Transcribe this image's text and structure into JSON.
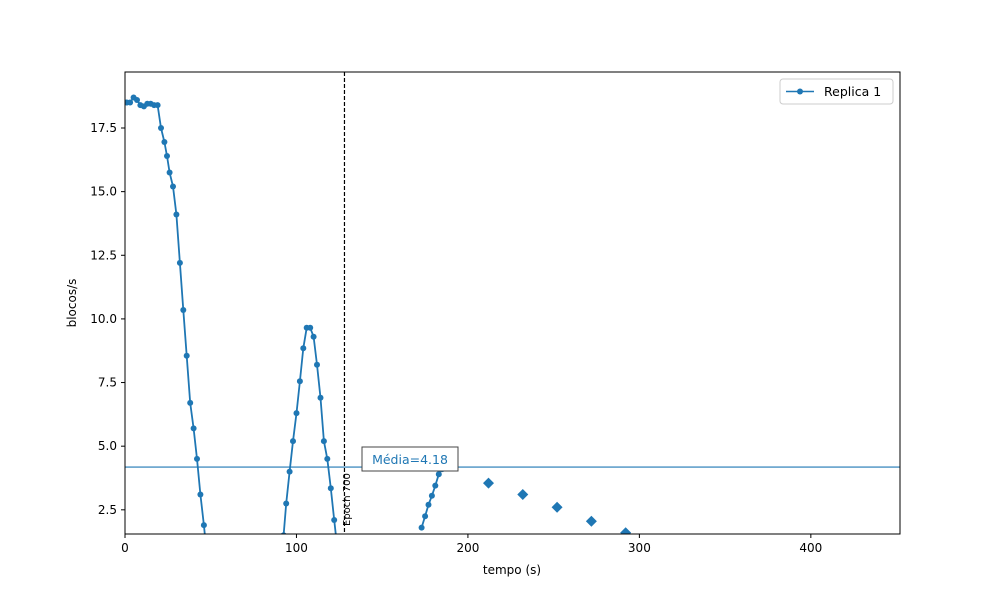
{
  "chart_data": {
    "type": "line",
    "title": "",
    "xlabel": "tempo (s)",
    "ylabel": "blocos/s",
    "xlim": [
      0,
      452
    ],
    "ylim": [
      1.55,
      19.7
    ],
    "xticks": [
      0,
      100,
      200,
      300,
      400
    ],
    "yticks": [
      2.5,
      5.0,
      7.5,
      10.0,
      12.5,
      15.0,
      17.5
    ],
    "xtick_labels": [
      "0",
      "100",
      "200",
      "300",
      "400"
    ],
    "ytick_labels": [
      "2.5",
      "5.0",
      "7.5",
      "10.0",
      "12.5",
      "15.0",
      "17.5"
    ],
    "grid": false,
    "legend_position": "top-right",
    "series": [
      {
        "name": "Replica 1",
        "color": "#1f77b4",
        "segments": [
          [
            [
              1,
              18.5
            ],
            [
              3,
              18.5
            ],
            [
              5,
              18.7
            ],
            [
              7,
              18.6
            ],
            [
              9,
              18.4
            ],
            [
              11,
              18.35
            ],
            [
              13,
              18.45
            ],
            [
              15,
              18.45
            ],
            [
              17,
              18.4
            ],
            [
              19,
              18.4
            ],
            [
              21,
              17.5
            ],
            [
              23,
              16.95
            ],
            [
              24.5,
              16.4
            ],
            [
              26,
              15.75
            ],
            [
              28,
              15.2
            ],
            [
              30,
              14.1
            ],
            [
              32,
              12.2
            ],
            [
              34,
              10.35
            ],
            [
              36,
              8.55
            ],
            [
              38,
              6.7
            ],
            [
              40,
              5.7
            ],
            [
              42,
              4.5
            ],
            [
              44,
              3.1
            ],
            [
              46,
              1.9
            ],
            [
              47.5,
              0.9
            ]
          ],
          [
            [
              92.5,
              1.5
            ],
            [
              94,
              2.75
            ],
            [
              96,
              4.0
            ],
            [
              98,
              5.2
            ],
            [
              100,
              6.3
            ],
            [
              102,
              7.55
            ],
            [
              104,
              8.85
            ],
            [
              106,
              9.65
            ],
            [
              108,
              9.65
            ],
            [
              110,
              9.3
            ],
            [
              112,
              8.2
            ],
            [
              114,
              6.9
            ],
            [
              116,
              5.2
            ],
            [
              118,
              4.5
            ],
            [
              120,
              3.35
            ],
            [
              122,
              2.1
            ],
            [
              124,
              0.9
            ]
          ],
          [
            [
              173,
              1.8
            ],
            [
              175,
              2.25
            ],
            [
              177,
              2.7
            ],
            [
              179,
              3.05
            ],
            [
              181,
              3.45
            ],
            [
              183,
              3.9
            ],
            [
              185,
              4.1
            ],
            [
              186,
              4.2
            ]
          ]
        ]
      }
    ],
    "extra_markers": {
      "shape": "diamond",
      "points": [
        [
          212,
          3.55
        ],
        [
          232,
          3.1
        ],
        [
          252,
          2.6
        ],
        [
          272,
          2.05
        ],
        [
          292,
          1.6
        ]
      ]
    },
    "mean_line": {
      "value": 4.18,
      "label": "Média=4.18"
    },
    "vline": {
      "x": 128,
      "label": "Epoch 700"
    }
  }
}
